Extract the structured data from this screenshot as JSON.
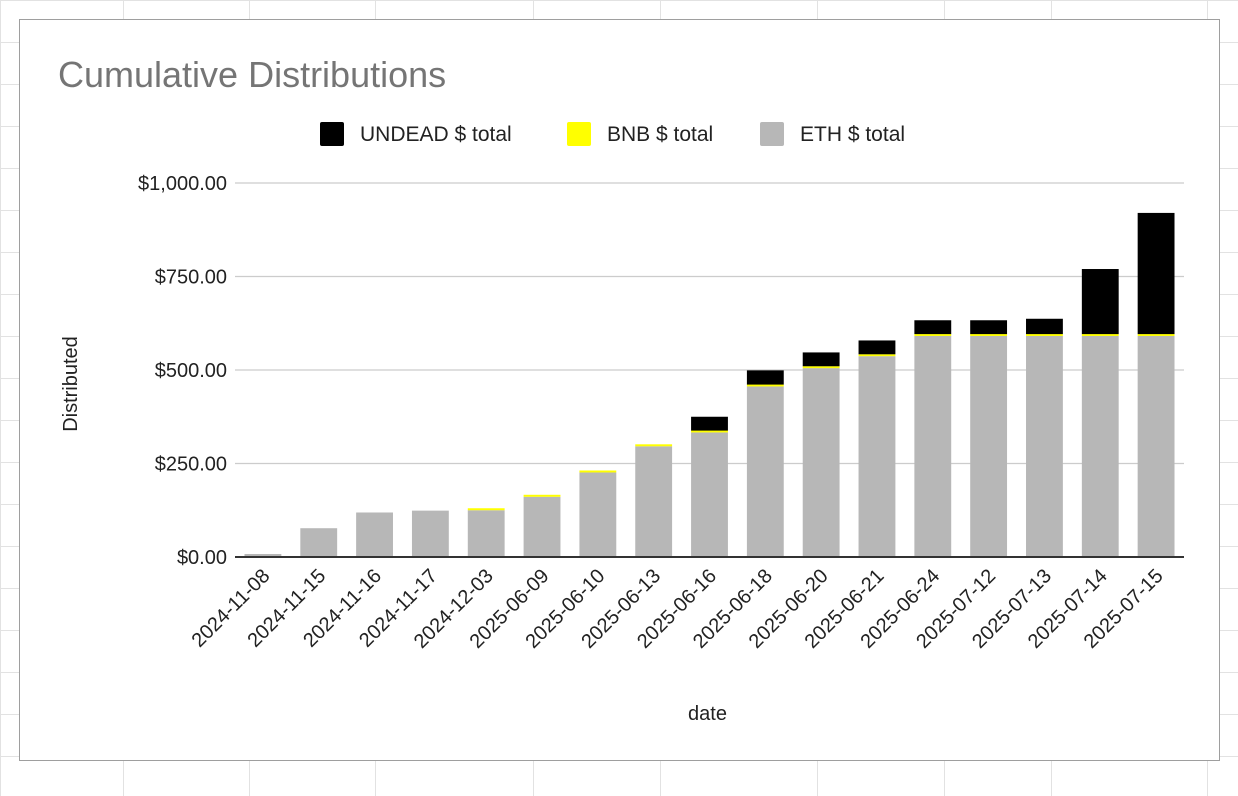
{
  "chart_data": {
    "type": "bar",
    "stacked": true,
    "title": "Cumulative Distributions",
    "xlabel": "date",
    "ylabel": "Distributed",
    "ylim": [
      0,
      1000
    ],
    "yticks": [
      0,
      250,
      500,
      750,
      1000
    ],
    "ytick_labels": [
      "$0.00",
      "$250.00",
      "$500.00",
      "$750.00",
      "$1,000.00"
    ],
    "grid": true,
    "legend_position": "top",
    "categories": [
      "2024-11-08",
      "2024-11-15",
      "2024-11-16",
      "2024-11-17",
      "2024-12-03",
      "2025-06-09",
      "2025-06-10",
      "2025-06-13",
      "2025-06-16",
      "2025-06-18",
      "2025-06-20",
      "2025-06-21",
      "2025-06-24",
      "2025-07-12",
      "2025-07-13",
      "2025-07-14",
      "2025-07-15"
    ],
    "series": [
      {
        "name": "ETH $ total",
        "color": "#b7b7b7",
        "values": [
          8,
          77,
          119,
          124,
          125,
          161,
          226,
          296,
          333,
          456,
          505,
          537,
          591,
          591,
          591,
          591,
          591
        ]
      },
      {
        "name": "BNB $ total",
        "color": "#ffff00",
        "values": [
          0,
          0,
          0,
          0,
          4,
          4,
          5,
          5,
          5,
          5,
          5,
          5,
          5,
          5,
          5,
          5,
          5
        ]
      },
      {
        "name": "UNDEAD $ total",
        "color": "#000000",
        "values": [
          0,
          0,
          0,
          0,
          0,
          0,
          0,
          0,
          37,
          38,
          37,
          37,
          37,
          37,
          41,
          174,
          324
        ]
      }
    ],
    "legend_order": [
      "UNDEAD $ total",
      "BNB $ total",
      "ETH $ total"
    ]
  }
}
